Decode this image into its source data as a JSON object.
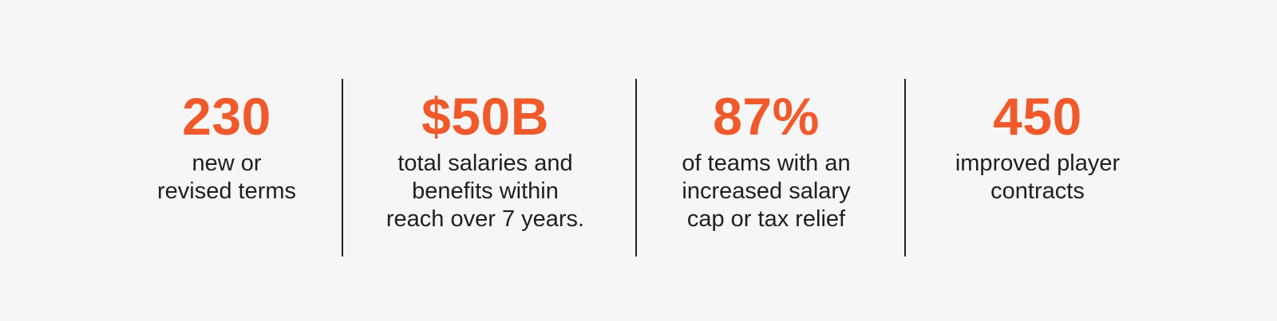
{
  "colors": {
    "background": "#f6f6f6",
    "accent": "#f05a2b",
    "text": "#1f1f1f",
    "divider": "#222222"
  },
  "stats": [
    {
      "value": "230",
      "label": "new or\nrevised terms"
    },
    {
      "value": "$50B",
      "label": "total salaries and\nbenefits within\nreach over 7 years."
    },
    {
      "value": "87%",
      "label": "of teams with an\nincreased salary\ncap or tax relief"
    },
    {
      "value": "450",
      "label": "improved player\ncontracts"
    }
  ]
}
